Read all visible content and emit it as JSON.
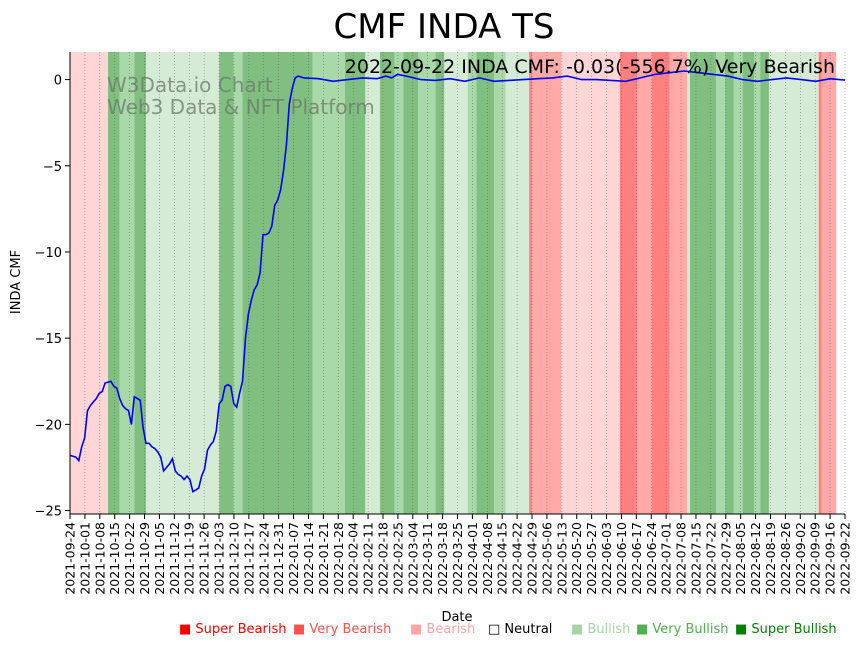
{
  "chart_data": {
    "type": "line",
    "title": "CMF INDA TS",
    "annotation": "2022-09-22 INDA CMF: -0.03(-556.7%) Very Bearish",
    "watermark": [
      "W3Data.io Chart",
      "Web3 Data & NFT Platform"
    ],
    "xlabel": "Date",
    "ylabel": "INDA CMF",
    "ylim": [
      -25.2,
      1.6
    ],
    "yticks": [
      0,
      -5,
      -10,
      -15,
      -20,
      -25
    ],
    "ytick_labels": [
      "0",
      "−5",
      "−10",
      "−15",
      "−20",
      "−25"
    ],
    "xticks": [
      "2021-09-24",
      "2021-10-01",
      "2021-10-08",
      "2021-10-15",
      "2021-10-22",
      "2021-10-29",
      "2021-11-05",
      "2021-11-12",
      "2021-11-19",
      "2021-11-26",
      "2021-12-03",
      "2021-12-10",
      "2021-12-17",
      "2021-12-24",
      "2021-12-31",
      "2022-01-07",
      "2022-01-14",
      "2022-01-21",
      "2022-01-28",
      "2022-02-04",
      "2022-02-11",
      "2022-02-18",
      "2022-02-25",
      "2022-03-04",
      "2022-03-11",
      "2022-03-18",
      "2022-03-25",
      "2022-04-01",
      "2022-04-08",
      "2022-04-15",
      "2022-04-22",
      "2022-04-29",
      "2022-05-06",
      "2022-05-13",
      "2022-05-20",
      "2022-05-27",
      "2022-06-03",
      "2022-06-10",
      "2022-06-17",
      "2022-06-24",
      "2022-07-01",
      "2022-07-08",
      "2022-07-15",
      "2022-07-22",
      "2022-07-29",
      "2022-08-05",
      "2022-08-12",
      "2022-08-19",
      "2022-08-26",
      "2022-09-02",
      "2022-09-09",
      "2022-09-16",
      "2022-09-22"
    ],
    "series": [
      {
        "name": "INDA CMF",
        "color": "#0000ff",
        "points": [
          [
            0,
            -21.8
          ],
          [
            2,
            -21.9
          ],
          [
            3,
            -22.1
          ],
          [
            4,
            -21.3
          ],
          [
            5,
            -20.8
          ],
          [
            6,
            -19.2
          ],
          [
            7,
            -18.9
          ],
          [
            8,
            -18.7
          ],
          [
            9,
            -18.5
          ],
          [
            10,
            -18.2
          ],
          [
            11,
            -18.1
          ],
          [
            12,
            -17.6
          ],
          [
            14,
            -17.5
          ],
          [
            15,
            -17.8
          ],
          [
            16,
            -17.9
          ],
          [
            17,
            -18.5
          ],
          [
            18,
            -18.9
          ],
          [
            19,
            -19.1
          ],
          [
            20,
            -19.2
          ],
          [
            21,
            -20.0
          ],
          [
            22,
            -18.4
          ],
          [
            23,
            -18.5
          ],
          [
            24,
            -18.6
          ],
          [
            25,
            -20.2
          ],
          [
            26,
            -21.1
          ],
          [
            27,
            -21.1
          ],
          [
            28,
            -21.3
          ],
          [
            29,
            -21.4
          ],
          [
            30,
            -21.6
          ],
          [
            31,
            -21.9
          ],
          [
            32,
            -22.7
          ],
          [
            33,
            -22.5
          ],
          [
            34,
            -22.3
          ],
          [
            35,
            -22.0
          ],
          [
            36,
            -22.7
          ],
          [
            37,
            -22.9
          ],
          [
            38,
            -23.0
          ],
          [
            39,
            -23.2
          ],
          [
            40,
            -23.0
          ],
          [
            41,
            -23.2
          ],
          [
            42,
            -23.9
          ],
          [
            43,
            -23.8
          ],
          [
            44,
            -23.7
          ],
          [
            45,
            -23.0
          ],
          [
            46,
            -22.6
          ],
          [
            47,
            -21.5
          ],
          [
            48,
            -21.2
          ],
          [
            49,
            -21.0
          ],
          [
            50,
            -20.4
          ],
          [
            51,
            -18.8
          ],
          [
            52,
            -18.6
          ],
          [
            53,
            -17.8
          ],
          [
            54,
            -17.7
          ],
          [
            55,
            -17.8
          ],
          [
            56,
            -18.8
          ],
          [
            57,
            -19.0
          ],
          [
            58,
            -18.2
          ],
          [
            59,
            -17.5
          ],
          [
            60,
            -15.0
          ],
          [
            61,
            -13.6
          ],
          [
            62,
            -12.8
          ],
          [
            63,
            -12.2
          ],
          [
            64,
            -11.9
          ],
          [
            65,
            -11.2
          ],
          [
            66,
            -9.0
          ],
          [
            67,
            -9.0
          ],
          [
            68,
            -8.9
          ],
          [
            69,
            -8.5
          ],
          [
            70,
            -7.3
          ],
          [
            71,
            -7.0
          ],
          [
            72,
            -6.4
          ],
          [
            73,
            -5.3
          ],
          [
            74,
            -3.8
          ],
          [
            75,
            -1.4
          ],
          [
            76,
            -0.5
          ],
          [
            77,
            0.1
          ],
          [
            78,
            0.2
          ],
          [
            80,
            0.1
          ],
          [
            85,
            0.05
          ],
          [
            90,
            -0.1
          ],
          [
            95,
            0.0
          ],
          [
            100,
            0.1
          ],
          [
            105,
            0.05
          ],
          [
            108,
            0.2
          ],
          [
            110,
            0.1
          ],
          [
            112,
            0.3
          ],
          [
            115,
            0.2
          ],
          [
            120,
            0.0
          ],
          [
            125,
            -0.05
          ],
          [
            130,
            0.05
          ],
          [
            135,
            -0.1
          ],
          [
            140,
            0.1
          ],
          [
            145,
            -0.1
          ],
          [
            150,
            -0.05
          ],
          [
            155,
            0.0
          ],
          [
            160,
            0.05
          ],
          [
            165,
            0.1
          ],
          [
            170,
            0.2
          ],
          [
            175,
            0.0
          ],
          [
            180,
            0.0
          ],
          [
            185,
            -0.05
          ],
          [
            190,
            -0.1
          ],
          [
            195,
            0.1
          ],
          [
            200,
            0.3
          ],
          [
            205,
            0.4
          ],
          [
            210,
            0.5
          ],
          [
            215,
            0.4
          ],
          [
            220,
            0.3
          ],
          [
            225,
            0.2
          ],
          [
            230,
            0.0
          ],
          [
            235,
            -0.1
          ],
          [
            240,
            0.0
          ],
          [
            245,
            0.1
          ],
          [
            250,
            0.0
          ],
          [
            255,
            -0.1
          ],
          [
            260,
            0.05
          ],
          [
            263,
            0.0
          ],
          [
            265,
            -0.03
          ]
        ]
      }
    ],
    "signal_bands": [
      {
        "start": 0,
        "end": 13,
        "signal": "Bearish-light"
      },
      {
        "start": 13,
        "end": 17,
        "signal": "Very Bullish"
      },
      {
        "start": 17,
        "end": 22,
        "signal": "Bullish"
      },
      {
        "start": 22,
        "end": 26,
        "signal": "Very Bullish"
      },
      {
        "start": 26,
        "end": 51,
        "signal": "Bullish-light"
      },
      {
        "start": 51,
        "end": 56,
        "signal": "Very Bullish"
      },
      {
        "start": 56,
        "end": 59,
        "signal": "Bullish"
      },
      {
        "start": 59,
        "end": 83,
        "signal": "Very Bullish"
      },
      {
        "start": 83,
        "end": 94,
        "signal": "Bullish"
      },
      {
        "start": 94,
        "end": 101,
        "signal": "Very Bullish"
      },
      {
        "start": 101,
        "end": 106,
        "signal": "Bullish-light"
      },
      {
        "start": 106,
        "end": 111,
        "signal": "Very Bullish"
      },
      {
        "start": 111,
        "end": 114,
        "signal": "Bullish"
      },
      {
        "start": 114,
        "end": 119,
        "signal": "Very Bullish"
      },
      {
        "start": 119,
        "end": 125,
        "signal": "Bullish"
      },
      {
        "start": 125,
        "end": 128,
        "signal": "Very Bullish"
      },
      {
        "start": 128,
        "end": 136,
        "signal": "Bullish-light"
      },
      {
        "start": 136,
        "end": 139,
        "signal": "Bullish"
      },
      {
        "start": 139,
        "end": 145,
        "signal": "Very Bullish"
      },
      {
        "start": 145,
        "end": 149,
        "signal": "Bullish"
      },
      {
        "start": 149,
        "end": 157,
        "signal": "Bullish-light"
      },
      {
        "start": 157,
        "end": 158,
        "signal": "Very Bearish"
      },
      {
        "start": 158,
        "end": 168,
        "signal": "Bearish"
      },
      {
        "start": 168,
        "end": 188,
        "signal": "Bearish-light"
      },
      {
        "start": 188,
        "end": 194,
        "signal": "Very Bearish"
      },
      {
        "start": 194,
        "end": 199,
        "signal": "Bearish"
      },
      {
        "start": 199,
        "end": 205,
        "signal": "Very Bearish"
      },
      {
        "start": 205,
        "end": 211,
        "signal": "Bearish"
      },
      {
        "start": 211,
        "end": 212,
        "signal": "Bullish-light"
      },
      {
        "start": 212,
        "end": 221,
        "signal": "Very Bullish"
      },
      {
        "start": 221,
        "end": 224,
        "signal": "Bullish"
      },
      {
        "start": 224,
        "end": 227,
        "signal": "Very Bullish"
      },
      {
        "start": 227,
        "end": 230,
        "signal": "Bullish"
      },
      {
        "start": 230,
        "end": 234,
        "signal": "Very Bullish"
      },
      {
        "start": 234,
        "end": 236,
        "signal": "Bullish"
      },
      {
        "start": 236,
        "end": 239,
        "signal": "Very Bullish"
      },
      {
        "start": 239,
        "end": 256,
        "signal": "Bullish-light"
      },
      {
        "start": 256,
        "end": 257,
        "signal": "Very Bearish"
      },
      {
        "start": 257,
        "end": 262,
        "signal": "Bearish"
      }
    ],
    "band_colors": {
      "Very Bullish": "#80bf80",
      "Bullish": "#a9d8a9",
      "Bullish-light": "#d5ebd5",
      "Very Bearish": "#ff8080",
      "Bearish": "#ffa9a9",
      "Bearish-light": "#ffd5d5"
    },
    "legend": [
      {
        "label": "Super Bearish",
        "color": "#ff0000",
        "symbol": "■"
      },
      {
        "label": "Very Bearish",
        "color": "#ff5050",
        "symbol": "■"
      },
      {
        "label": "Bearish",
        "color": "#ffa5a5",
        "symbol": "■"
      },
      {
        "label": "Neutral",
        "color": "#000000",
        "symbol": "□"
      },
      {
        "label": "Bullish",
        "color": "#a5d5a5",
        "symbol": "■"
      },
      {
        "label": "Very Bullish",
        "color": "#50b050",
        "symbol": "■"
      },
      {
        "label": "Super Bullish",
        "color": "#008000",
        "symbol": "■"
      }
    ]
  }
}
